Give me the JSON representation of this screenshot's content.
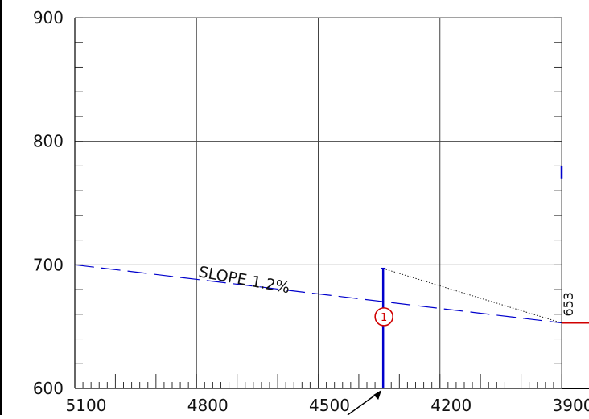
{
  "chart_data": {
    "type": "profile",
    "x_axis": {
      "reversed": true,
      "range": [
        5100,
        3900
      ],
      "ticks": [
        5100,
        4800,
        4500,
        4200,
        3900
      ],
      "tick_labels": [
        "5100",
        "4800",
        "4500",
        "4200",
        "3900"
      ],
      "minor_step": 20
    },
    "y_axis": {
      "range": [
        600,
        900
      ],
      "ticks": [
        600,
        700,
        800,
        900
      ],
      "tick_labels": [
        "600",
        "700",
        "800",
        "900"
      ],
      "minor_step": 20
    },
    "grid": true,
    "slope_line": {
      "from": {
        "x": 5100,
        "y": 700
      },
      "to": {
        "x": 3900,
        "y": 653
      },
      "label": "SLOPE 1.2%",
      "color": "#0000cc",
      "style": "dashed"
    },
    "elevation_label": {
      "x": 3900,
      "y": 653,
      "text": "653"
    },
    "vertical_marker": {
      "x": 4340,
      "y_bottom": 600,
      "y_top": 697,
      "color": "#0000cc",
      "circle_label": "1",
      "circle_y": 658,
      "circle_color": "#d00000"
    },
    "dotted_connector": {
      "from": {
        "x": 4340,
        "y": 697
      },
      "to": {
        "x": 3900,
        "y": 653
      }
    },
    "right_edge_segment": {
      "y_from": 770,
      "y_to": 780,
      "color": "#0000cc"
    },
    "red_ground_line": {
      "y": 653,
      "color": "#d00000"
    }
  }
}
